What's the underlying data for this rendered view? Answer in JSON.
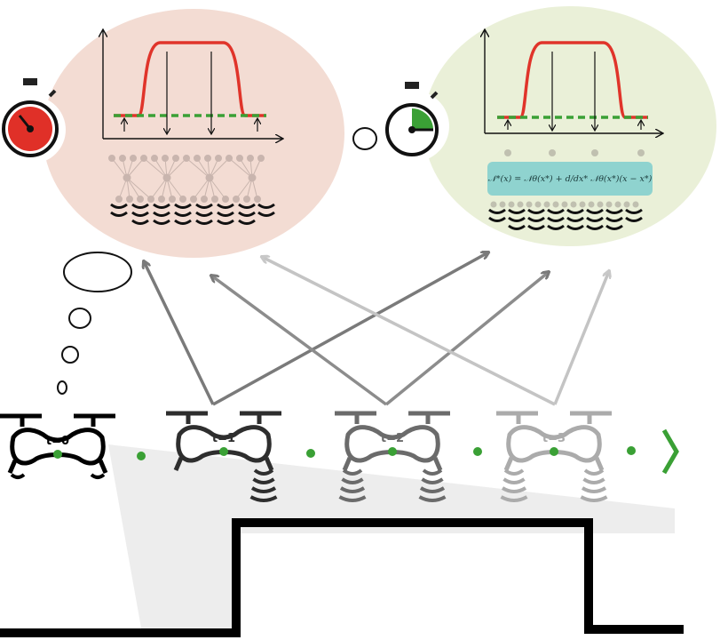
{
  "drones": [
    {
      "label": "t=0",
      "color": "#000000"
    },
    {
      "label": "t=1",
      "color": "#2e2e2e"
    },
    {
      "label": "t=2",
      "color": "#6b6b6b"
    },
    {
      "label": "t=3",
      "color": "#ababab"
    }
  ],
  "formula": "𝒩*(x) = 𝒩θ(x*) + d/dx* 𝒩θ(x*)(x − x*)",
  "colors": {
    "slow_bubble": "#f3dcd3",
    "fast_bubble": "#eaf0d8",
    "red_curve": "#e0342a",
    "green_dash": "#3aa035",
    "green_dot": "#3aa035",
    "formula_box": "#8fd3cf",
    "ground": "#000000",
    "trail": "#ededed"
  },
  "icons": [
    "stopwatch-slow-icon",
    "stopwatch-fast-icon",
    "thought-bubble-icon",
    "chevron-right-icon"
  ]
}
